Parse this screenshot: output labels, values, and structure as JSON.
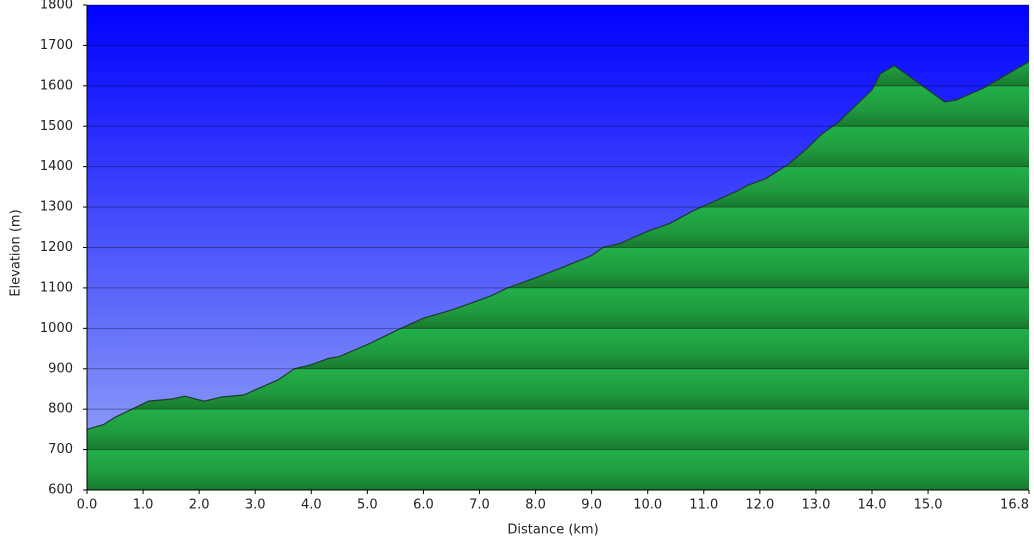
{
  "chart_data": {
    "type": "area",
    "x_label": "Distance   (km)",
    "y_label": "Elevation (m)",
    "x": [
      0,
      0.3,
      0.5,
      0.8,
      1.1,
      1.5,
      1.75,
      2.0,
      2.1,
      2.4,
      2.8,
      3.0,
      3.4,
      3.7,
      4.0,
      4.3,
      4.5,
      5.0,
      5.3,
      5.6,
      6.0,
      6.5,
      6.9,
      7.2,
      7.5,
      8.0,
      8.5,
      9.0,
      9.2,
      9.5,
      10.0,
      10.4,
      10.8,
      11.2,
      11.6,
      11.8,
      12.1,
      12.5,
      12.8,
      13.1,
      13.4,
      13.7,
      14.0,
      14.15,
      14.4,
      14.6,
      15.0,
      15.3,
      15.5,
      16.0,
      16.3,
      16.8
    ],
    "values": [
      750,
      762,
      780,
      800,
      820,
      825,
      832,
      823,
      820,
      830,
      835,
      848,
      872,
      900,
      910,
      925,
      930,
      960,
      980,
      1000,
      1025,
      1045,
      1065,
      1080,
      1100,
      1125,
      1152,
      1180,
      1200,
      1210,
      1240,
      1260,
      1290,
      1315,
      1340,
      1355,
      1370,
      1405,
      1440,
      1480,
      1510,
      1550,
      1590,
      1630,
      1650,
      1630,
      1590,
      1560,
      1565,
      1595,
      1620,
      1660
    ],
    "color": "#22a845",
    "xlim": [
      0,
      16.8
    ],
    "xticks": [
      {
        "value": 0,
        "label": "0.0"
      },
      {
        "value": 1,
        "label": "1.0"
      },
      {
        "value": 2,
        "label": "2.0"
      },
      {
        "value": 3,
        "label": "3.0"
      },
      {
        "value": 4,
        "label": "4.0"
      },
      {
        "value": 5,
        "label": "5.0"
      },
      {
        "value": 6,
        "label": "6.0"
      },
      {
        "value": 7,
        "label": "7.0"
      },
      {
        "value": 8,
        "label": "8.0"
      },
      {
        "value": 9,
        "label": "9.0"
      },
      {
        "value": 10,
        "label": "10.0"
      },
      {
        "value": 11,
        "label": "11.0"
      },
      {
        "value": 12,
        "label": "12.0"
      },
      {
        "value": 13,
        "label": "13.0"
      },
      {
        "value": 14,
        "label": "14.0"
      },
      {
        "value": 15,
        "label": "15.0"
      },
      16.8
    ],
    "ylim": [
      600,
      1800
    ],
    "yticks": [
      600,
      700,
      800,
      900,
      1000,
      1100,
      1200,
      1300,
      1400,
      1500,
      1600,
      1700,
      1800
    ],
    "grid": true
  }
}
